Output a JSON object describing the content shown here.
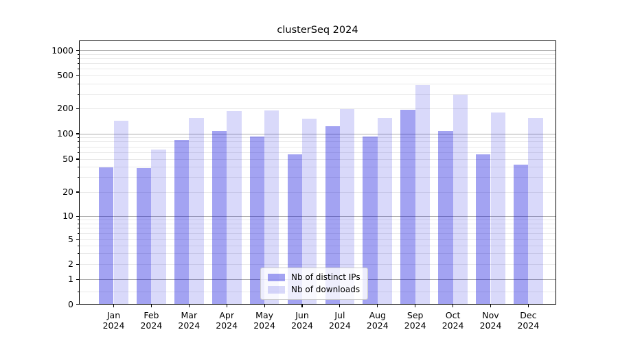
{
  "chart_data": {
    "type": "bar",
    "title": "clusterSeq 2024",
    "categories": [
      "Jan",
      "Feb",
      "Mar",
      "Apr",
      "May",
      "Jun",
      "Jul",
      "Aug",
      "Sep",
      "Oct",
      "Nov",
      "Dec"
    ],
    "x_tick_year": "2024",
    "series": [
      {
        "key": "distinct-ips",
        "name": "Nb of distinct IPs",
        "color": "rgba(0,0,220,0.36)",
        "values": [
          40,
          39,
          84,
          108,
          93,
          57,
          124,
          92,
          195,
          108,
          57,
          43
        ]
      },
      {
        "key": "downloads",
        "name": "Nb of downloads",
        "color": "rgba(0,0,220,0.15)",
        "values": [
          142,
          65,
          156,
          188,
          190,
          152,
          196,
          156,
          385,
          293,
          181,
          156
        ]
      }
    ],
    "yscale": "log-like with 0 baseline",
    "yticks": [
      0,
      1,
      2,
      5,
      10,
      20,
      50,
      100,
      200,
      500,
      1000
    ],
    "ylim": [
      0,
      1300
    ],
    "grid": "both",
    "legend_position": "lower center inside plot",
    "colors": {
      "bar_dark_rendered": "#a3a3f2",
      "bar_light_rendered": "#d9d9fa",
      "grid_major": "#ababab",
      "grid_minor": "#e9e9e9",
      "axis": "#000000",
      "background": "#ffffff"
    }
  }
}
